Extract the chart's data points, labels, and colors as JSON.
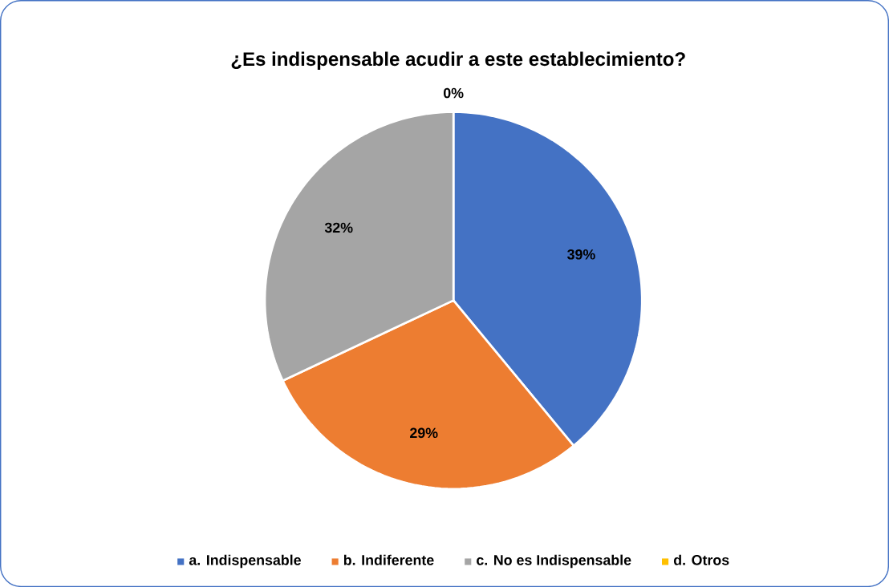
{
  "chart_data": {
    "type": "pie",
    "title": "¿Es indispensable acudir a este establecimiento?",
    "categories": [
      "a. Indispensable",
      "b. Indiferente",
      "c. No es Indispensable",
      "d. Otros"
    ],
    "values": [
      39,
      29,
      32,
      0
    ],
    "colors": [
      "#4472c4",
      "#ed7d31",
      "#a5a5a5",
      "#ffc000"
    ],
    "value_labels": [
      "39%",
      "29%",
      "32%",
      "0%"
    ],
    "legend": "bottom"
  }
}
